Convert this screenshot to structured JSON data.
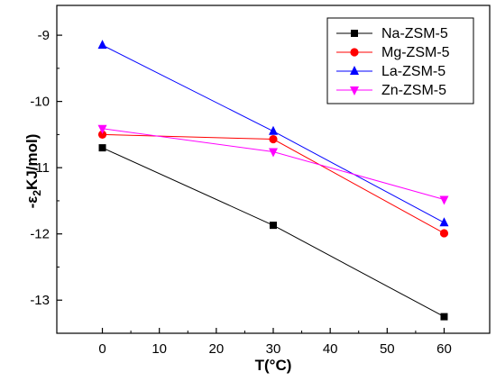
{
  "chart_data": {
    "type": "line",
    "xlabel": "T(°C)",
    "ylabel_main": "-ε",
    "ylabel_sub": "2",
    "ylabel_tail": "KJ/mol)",
    "xlim": [
      -8,
      68
    ],
    "ylim": [
      -13.5,
      -8.55
    ],
    "xticks": [
      0,
      10,
      20,
      30,
      40,
      50,
      60
    ],
    "yticks": [
      -9,
      -10,
      -11,
      -12,
      -13
    ],
    "legend_position": "top-right",
    "x": [
      0,
      30,
      60
    ],
    "series": [
      {
        "name": "Na-ZSM-5",
        "marker": "square",
        "color": "#000000",
        "values": [
          -10.7,
          -11.87,
          -13.25
        ]
      },
      {
        "name": "Mg-ZSM-5",
        "marker": "circle",
        "color": "#ff0000",
        "values": [
          -10.5,
          -10.57,
          -11.99
        ]
      },
      {
        "name": "La-ZSM-5",
        "marker": "triangle-up",
        "color": "#0000ff",
        "values": [
          -9.15,
          -10.45,
          -11.83
        ]
      },
      {
        "name": "Zn-ZSM-5",
        "marker": "triangle-down",
        "color": "#ff00ff",
        "values": [
          -10.41,
          -10.76,
          -11.48
        ]
      }
    ]
  }
}
